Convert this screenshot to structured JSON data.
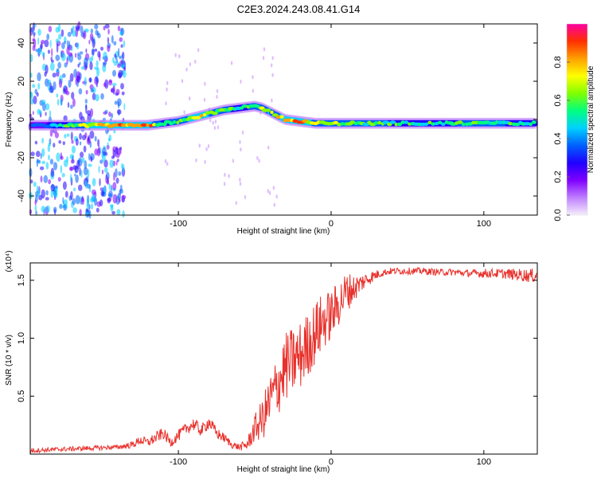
{
  "title": "C2E3.2024.243.08.41.G14",
  "chart_data": [
    {
      "type": "heatmap",
      "xlabel": "Height of straight line (km)",
      "ylabel": "Frequency (Hz)",
      "xlim": [
        -197,
        135
      ],
      "ylim": [
        -50,
        50
      ],
      "x_ticks": [
        -100,
        0,
        100
      ],
      "y_ticks": [
        -40,
        -20,
        0,
        20,
        40
      ],
      "colorbar": {
        "label": "Normalized spectral amplitude",
        "range": [
          0,
          1
        ],
        "ticks": [
          0.0,
          0.2,
          0.4,
          0.6,
          0.8
        ],
        "colors": [
          "#f5eefb",
          "#c080ff",
          "#8000ff",
          "#2000ff",
          "#0060ff",
          "#00d0ff",
          "#00ff80",
          "#80ff00",
          "#ffff00",
          "#ffa000",
          "#ff3000",
          "#ff00a0"
        ]
      },
      "ridge": {
        "x": [
          -195,
          -180,
          -160,
          -140,
          -130,
          -120,
          -110,
          -100,
          -90,
          -80,
          -70,
          -60,
          -50,
          -45,
          -40,
          -35,
          -30,
          -20,
          -10,
          0,
          20,
          60,
          100,
          135
        ],
        "y": [
          -3,
          -3,
          -3,
          -3,
          -3,
          -3,
          -2,
          -1,
          1,
          3,
          5,
          6,
          7,
          6,
          4,
          2,
          0,
          -1,
          -2,
          -2,
          -2,
          -2,
          -2,
          -2
        ],
        "amplitude": [
          0.35,
          0.45,
          0.75,
          0.85,
          0.9,
          0.85,
          0.55,
          0.6,
          0.8,
          0.75,
          0.6,
          0.55,
          0.6,
          0.7,
          0.75,
          0.7,
          0.8,
          0.9,
          0.7,
          0.65,
          0.6,
          0.55,
          0.6,
          0.55
        ]
      }
    },
    {
      "type": "line",
      "xlabel": "Height of straight line (km)",
      "ylabel": "SNR (10 * v/v)",
      "scale_label": "(x10⁴)",
      "xlim": [
        -197,
        135
      ],
      "ylim": [
        0,
        1.65
      ],
      "x_ticks": [
        -100,
        0,
        100
      ],
      "y_ticks": [
        0.5,
        1.0,
        1.5
      ],
      "series": [
        {
          "color": "#e8312c",
          "x": [
            -197,
            -180,
            -160,
            -140,
            -130,
            -125,
            -120,
            -115,
            -110,
            -105,
            -100,
            -95,
            -90,
            -85,
            -80,
            -75,
            -70,
            -65,
            -60,
            -55,
            -50,
            -45,
            -40,
            -35,
            -30,
            -25,
            -20,
            -15,
            -10,
            -5,
            0,
            5,
            10,
            15,
            20,
            25,
            30,
            35,
            40,
            50,
            60,
            70,
            80,
            90,
            100,
            110,
            120,
            130,
            135
          ],
          "values": [
            0.03,
            0.04,
            0.05,
            0.06,
            0.08,
            0.12,
            0.1,
            0.14,
            0.18,
            0.1,
            0.16,
            0.22,
            0.26,
            0.2,
            0.28,
            0.18,
            0.14,
            0.08,
            0.06,
            0.08,
            0.22,
            0.3,
            0.45,
            0.6,
            0.75,
            0.8,
            0.85,
            0.95,
            1.05,
            1.15,
            1.2,
            1.3,
            1.4,
            1.43,
            1.48,
            1.52,
            1.55,
            1.57,
            1.58,
            1.58,
            1.58,
            1.57,
            1.57,
            1.56,
            1.56,
            1.56,
            1.55,
            1.54,
            1.54
          ],
          "noise": [
            0.02,
            0.02,
            0.02,
            0.02,
            0.03,
            0.04,
            0.04,
            0.05,
            0.05,
            0.04,
            0.05,
            0.05,
            0.06,
            0.05,
            0.06,
            0.05,
            0.04,
            0.03,
            0.03,
            0.05,
            0.12,
            0.18,
            0.25,
            0.28,
            0.3,
            0.3,
            0.3,
            0.28,
            0.28,
            0.25,
            0.22,
            0.2,
            0.18,
            0.12,
            0.08,
            0.06,
            0.04,
            0.03,
            0.03,
            0.03,
            0.03,
            0.03,
            0.03,
            0.03,
            0.04,
            0.04,
            0.05,
            0.06,
            0.06
          ]
        }
      ]
    }
  ]
}
